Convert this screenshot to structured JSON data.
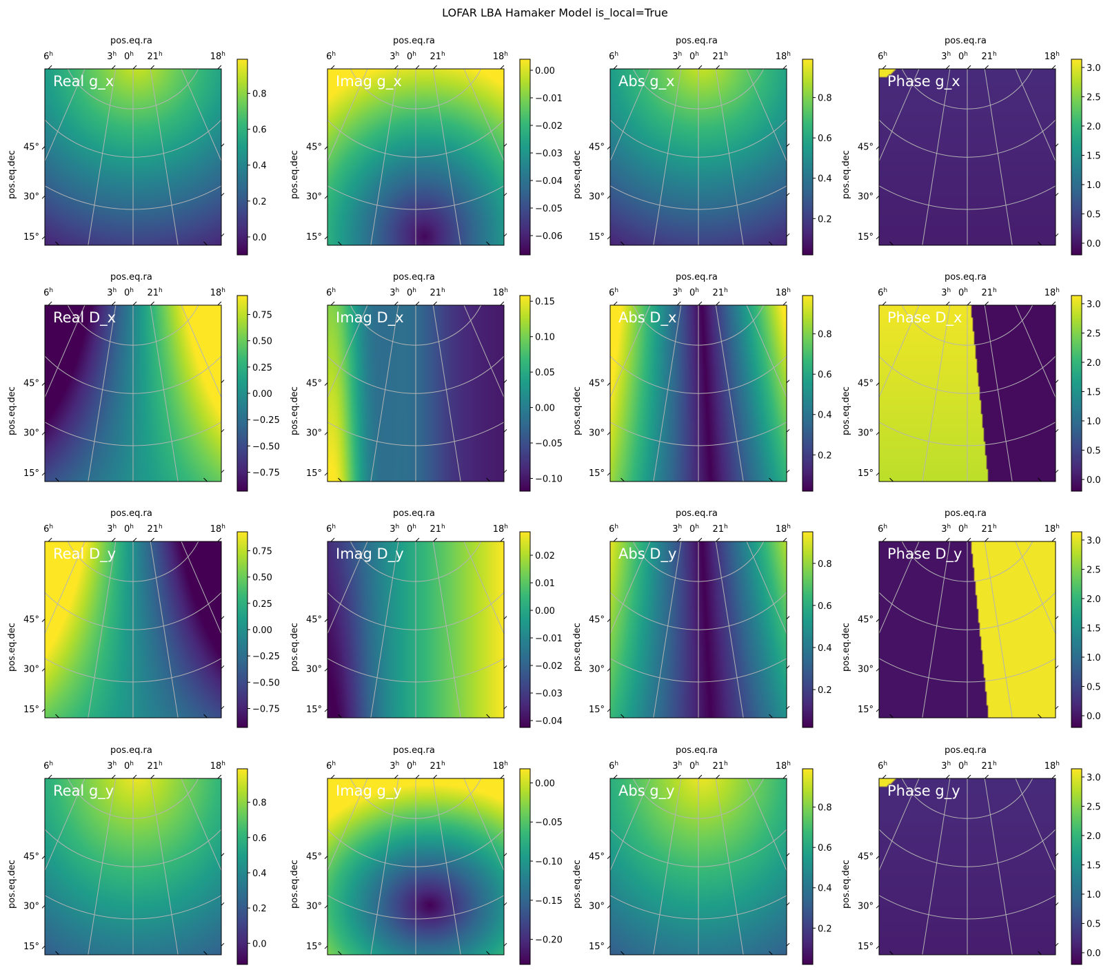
{
  "figure": {
    "title": "LOFAR LBA Hamaker Model is_local=True"
  },
  "axes_common": {
    "xlabel": "pos.eq.ra",
    "ylabel": "pos.eq.dec",
    "ra_ticks": [
      {
        "h": "6",
        "sup": "h"
      },
      {
        "h": "3",
        "sup": "h"
      },
      {
        "h": "0",
        "sup": "h"
      },
      {
        "h": "21",
        "sup": "h"
      },
      {
        "h": "18",
        "sup": "h"
      }
    ],
    "dec_ticks": [
      "45°",
      "30°",
      "15°"
    ],
    "grid": true,
    "grid_color": "#b4b4b4",
    "colormap": "viridis",
    "label_color": "#ffffff"
  },
  "chart_data": [
    {
      "type": "heatmap",
      "label": "Real g_x",
      "pattern": "gain",
      "cbar_range": [
        -0.1,
        0.99
      ],
      "cbar_ticks": [
        "0.8",
        "0.6",
        "0.4",
        "0.2",
        "0.0"
      ],
      "cbar_values": [
        0.8,
        0.6,
        0.4,
        0.2,
        0.0
      ]
    },
    {
      "type": "heatmap",
      "label": "Imag g_x",
      "pattern": "gain_imag",
      "cbar_range": [
        -0.067,
        0.004
      ],
      "cbar_ticks": [
        "0.00",
        "−0.01",
        "−0.02",
        "−0.03",
        "−0.04",
        "−0.05",
        "−0.06"
      ],
      "cbar_values": [
        0.0,
        -0.01,
        -0.02,
        -0.03,
        -0.04,
        -0.05,
        -0.06
      ]
    },
    {
      "type": "heatmap",
      "label": "Abs g_x",
      "pattern": "gain",
      "cbar_range": [
        0.02,
        0.99
      ],
      "cbar_ticks": [
        "0.8",
        "0.6",
        "0.4",
        "0.2"
      ],
      "cbar_values": [
        0.8,
        0.6,
        0.4,
        0.2
      ]
    },
    {
      "type": "heatmap",
      "label": "Phase g_x",
      "pattern": "phase_g",
      "cbar_range": [
        -0.2,
        3.14
      ],
      "cbar_ticks": [
        "3.0",
        "2.5",
        "2.0",
        "1.5",
        "1.0",
        "0.5",
        "0.0"
      ],
      "cbar_values": [
        3.0,
        2.5,
        2.0,
        1.5,
        1.0,
        0.5,
        0.0
      ]
    },
    {
      "type": "heatmap",
      "label": "Real D_x",
      "pattern": "real_dx",
      "cbar_range": [
        -0.93,
        0.93
      ],
      "cbar_ticks": [
        "0.75",
        "0.50",
        "0.25",
        "0.00",
        "−0.25",
        "−0.50",
        "−0.75"
      ],
      "cbar_values": [
        0.75,
        0.5,
        0.25,
        0.0,
        -0.25,
        -0.5,
        -0.75
      ]
    },
    {
      "type": "heatmap",
      "label": "Imag D_x",
      "pattern": "imag_dx",
      "cbar_range": [
        -0.118,
        0.158
      ],
      "cbar_ticks": [
        "0.15",
        "0.10",
        "0.05",
        "0.00",
        "−0.05",
        "−0.10"
      ],
      "cbar_values": [
        0.15,
        0.1,
        0.05,
        0.0,
        -0.05,
        -0.1
      ]
    },
    {
      "type": "heatmap",
      "label": "Abs D_x",
      "pattern": "abs_d",
      "cbar_range": [
        0.02,
        0.99
      ],
      "cbar_ticks": [
        "0.8",
        "0.6",
        "0.4",
        "0.2"
      ],
      "cbar_values": [
        0.8,
        0.6,
        0.4,
        0.2
      ]
    },
    {
      "type": "heatmap",
      "label": "Phase D_x",
      "pattern": "phase_dx",
      "cbar_range": [
        -0.2,
        3.14
      ],
      "cbar_ticks": [
        "3.0",
        "2.5",
        "2.0",
        "1.5",
        "1.0",
        "0.5",
        "0.0"
      ],
      "cbar_values": [
        3.0,
        2.5,
        2.0,
        1.5,
        1.0,
        0.5,
        0.0
      ]
    },
    {
      "type": "heatmap",
      "label": "Real D_y",
      "pattern": "real_dy",
      "cbar_range": [
        -0.93,
        0.93
      ],
      "cbar_ticks": [
        "0.75",
        "0.50",
        "0.25",
        "0.00",
        "−0.25",
        "−0.50",
        "−0.75"
      ],
      "cbar_values": [
        0.75,
        0.5,
        0.25,
        0.0,
        -0.25,
        -0.5,
        -0.75
      ]
    },
    {
      "type": "heatmap",
      "label": "Imag D_y",
      "pattern": "imag_dy",
      "cbar_range": [
        -0.0425,
        0.0285
      ],
      "cbar_ticks": [
        "0.02",
        "0.01",
        "0.00",
        "−0.01",
        "−0.02",
        "−0.03",
        "−0.04"
      ],
      "cbar_values": [
        0.02,
        0.01,
        0.0,
        -0.01,
        -0.02,
        -0.03,
        -0.04
      ]
    },
    {
      "type": "heatmap",
      "label": "Abs D_y",
      "pattern": "abs_dy",
      "cbar_range": [
        0.02,
        0.95
      ],
      "cbar_ticks": [
        "0.8",
        "0.6",
        "0.4",
        "0.2"
      ],
      "cbar_values": [
        0.8,
        0.6,
        0.4,
        0.2
      ]
    },
    {
      "type": "heatmap",
      "label": "Phase D_y",
      "pattern": "phase_dy",
      "cbar_range": [
        -0.2,
        3.14
      ],
      "cbar_ticks": [
        "3.0",
        "2.5",
        "2.0",
        "1.5",
        "1.0",
        "0.5",
        "0.0"
      ],
      "cbar_values": [
        3.0,
        2.5,
        2.0,
        1.5,
        1.0,
        0.5,
        0.0
      ]
    },
    {
      "type": "heatmap",
      "label": "Real g_y",
      "pattern": "gain_y",
      "cbar_range": [
        -0.12,
        0.99
      ],
      "cbar_ticks": [
        "0.8",
        "0.6",
        "0.4",
        "0.2",
        "0.0"
      ],
      "cbar_values": [
        0.8,
        0.6,
        0.4,
        0.2,
        0.0
      ]
    },
    {
      "type": "heatmap",
      "label": "Imag g_y",
      "pattern": "gain_imag_y",
      "cbar_range": [
        -0.232,
        0.018
      ],
      "cbar_ticks": [
        "0.00",
        "−0.05",
        "−0.10",
        "−0.15",
        "−0.20"
      ],
      "cbar_values": [
        0.0,
        -0.05,
        -0.1,
        -0.15,
        -0.2
      ]
    },
    {
      "type": "heatmap",
      "label": "Abs g_y",
      "pattern": "gain_y",
      "cbar_range": [
        0.02,
        0.99
      ],
      "cbar_ticks": [
        "0.8",
        "0.6",
        "0.4",
        "0.2"
      ],
      "cbar_values": [
        0.8,
        0.6,
        0.4,
        0.2
      ]
    },
    {
      "type": "heatmap",
      "label": "Phase g_y",
      "pattern": "phase_g",
      "cbar_range": [
        -0.2,
        3.14
      ],
      "cbar_ticks": [
        "3.0",
        "2.5",
        "2.0",
        "1.5",
        "1.0",
        "0.5",
        "0.0"
      ],
      "cbar_values": [
        3.0,
        2.5,
        2.0,
        1.5,
        1.0,
        0.5,
        0.0
      ]
    }
  ]
}
